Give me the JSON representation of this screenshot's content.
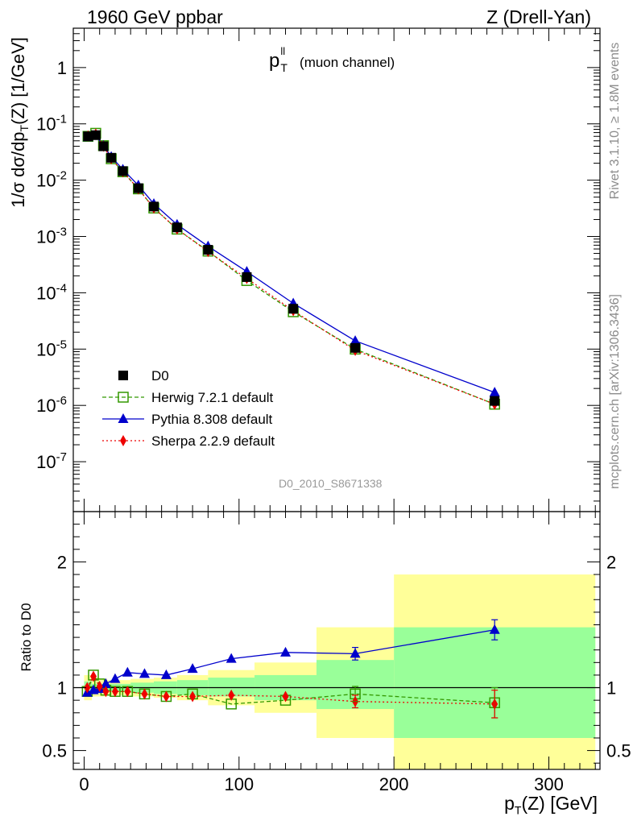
{
  "header": {
    "left": "1960 GeV ppbar",
    "right": "Z (Drell-Yan)"
  },
  "side_labels": {
    "rivet": "Rivet 3.1.10, ≥ 1.8M events",
    "source": "mcplots.cern.ch [arXiv:1306.3436]"
  },
  "plot_title": {
    "main": "p",
    "sup": "ll",
    "sub": "T",
    "suffix": "(muon channel)"
  },
  "watermark": "D0_2010_S8671338",
  "ylabel_main": "1/σ dσ/dp_T(Z) [1/GeV]",
  "ylabel_ratio": "Ratio to D0",
  "xlabel": "p_T(Z) [GeV]",
  "colors": {
    "herwig": "#339900",
    "pythia": "#0000cc",
    "sherpa": "#ee0000",
    "data": "#000000",
    "band_yellow": "#ffff99",
    "band_green": "#99ff99"
  },
  "chart_data": [
    {
      "type": "line",
      "yscale": "log",
      "xlim": [
        -7,
        333
      ],
      "ylim": [
        1.3e-08,
        5.0
      ],
      "x": [
        2.5,
        7.5,
        12.5,
        17.5,
        25,
        35,
        45,
        60,
        80,
        105,
        135,
        175,
        265
      ],
      "ticks_y": [
        "10^-7",
        "10^-6",
        "10^-5",
        "10^-4",
        "10^-3",
        "10^-2",
        "10^-1",
        "1"
      ],
      "legend_position": "lower-left",
      "series": [
        {
          "name": "D0",
          "marker": "square",
          "values": [
            0.06,
            0.063,
            0.04,
            0.025,
            0.0145,
            0.0072,
            0.0034,
            0.00145,
            0.00058,
            0.00019,
            5.2e-05,
            1.05e-05,
            1.2e-06
          ]
        },
        {
          "name": "Herwig 7.2.1 default",
          "marker": "open-square",
          "values": [
            0.06,
            0.068,
            0.041,
            0.024,
            0.0141,
            0.007,
            0.0032,
            0.00135,
            0.00055,
            0.000165,
            4.6e-05,
            1e-05,
            1.05e-06
          ]
        },
        {
          "name": "Pythia 8.308 default",
          "marker": "triangle",
          "values": [
            0.058,
            0.062,
            0.041,
            0.026,
            0.0155,
            0.0081,
            0.0038,
            0.00163,
            0.00067,
            0.000238,
            6.5e-05,
            1.4e-05,
            1.7e-06
          ]
        },
        {
          "name": "Sherpa 2.2.9 default",
          "marker": "diamond",
          "values": [
            0.061,
            0.066,
            0.04,
            0.024,
            0.0141,
            0.007,
            0.0032,
            0.00135,
            0.00054,
            0.00018,
            4.8e-05,
            9.5e-06,
            1.05e-06
          ]
        }
      ]
    },
    {
      "type": "line",
      "ylabel": "Ratio to D0",
      "xlabel": "p_T(Z) [GeV]",
      "xlim": [
        -7,
        333
      ],
      "ylim": [
        0.35,
        2.4
      ],
      "ticks_x": [
        0,
        100,
        200,
        300
      ],
      "ticks_y": [
        0.5,
        1,
        2
      ],
      "x": [
        2,
        6,
        10,
        14,
        20,
        28,
        39,
        53,
        70,
        95,
        130,
        175,
        265
      ],
      "bands": [
        {
          "x0": 0,
          "x1": 5,
          "green": [
            0.95,
            1.05
          ],
          "yellow": [
            0.9,
            1.1
          ]
        },
        {
          "x0": 5,
          "x1": 10,
          "green": [
            0.97,
            1.03
          ],
          "yellow": [
            0.93,
            1.08
          ]
        },
        {
          "x0": 10,
          "x1": 15,
          "green": [
            0.97,
            1.03
          ],
          "yellow": [
            0.93,
            1.07
          ]
        },
        {
          "x0": 15,
          "x1": 20,
          "green": [
            0.97,
            1.03
          ],
          "yellow": [
            0.94,
            1.06
          ]
        },
        {
          "x0": 20,
          "x1": 30,
          "green": [
            0.97,
            1.03
          ],
          "yellow": [
            0.94,
            1.06
          ]
        },
        {
          "x0": 30,
          "x1": 45,
          "green": [
            0.96,
            1.04
          ],
          "yellow": [
            0.93,
            1.07
          ]
        },
        {
          "x0": 45,
          "x1": 60,
          "green": [
            0.95,
            1.05
          ],
          "yellow": [
            0.92,
            1.08
          ]
        },
        {
          "x0": 60,
          "x1": 80,
          "green": [
            0.94,
            1.06
          ],
          "yellow": [
            0.9,
            1.1
          ]
        },
        {
          "x0": 80,
          "x1": 110,
          "green": [
            0.93,
            1.08
          ],
          "yellow": [
            0.86,
            1.14
          ]
        },
        {
          "x0": 110,
          "x1": 150,
          "green": [
            0.9,
            1.1
          ],
          "yellow": [
            0.8,
            1.2
          ]
        },
        {
          "x0": 150,
          "x1": 200,
          "green": [
            0.83,
            1.22
          ],
          "yellow": [
            0.6,
            1.48
          ]
        },
        {
          "x0": 200,
          "x1": 330,
          "green": [
            0.6,
            1.48
          ],
          "yellow": [
            0.3,
            1.9
          ]
        }
      ],
      "series": [
        {
          "name": "Herwig 7.2.1 default",
          "marker": "open-square",
          "values": [
            0.97,
            1.1,
            1.03,
            0.98,
            0.97,
            0.97,
            0.95,
            0.93,
            0.95,
            0.87,
            0.9,
            0.95,
            0.88
          ]
        },
        {
          "name": "Pythia 8.308 default",
          "marker": "triangle",
          "values": [
            0.96,
            0.98,
            0.99,
            1.03,
            1.07,
            1.12,
            1.11,
            1.1,
            1.15,
            1.23,
            1.28,
            1.27,
            1.46
          ]
        },
        {
          "name": "Sherpa 2.2.9 default",
          "marker": "diamond",
          "values": [
            1.0,
            1.09,
            1.01,
            0.97,
            0.97,
            0.97,
            0.95,
            0.93,
            0.93,
            0.94,
            0.93,
            0.89,
            0.87
          ]
        }
      ]
    }
  ]
}
